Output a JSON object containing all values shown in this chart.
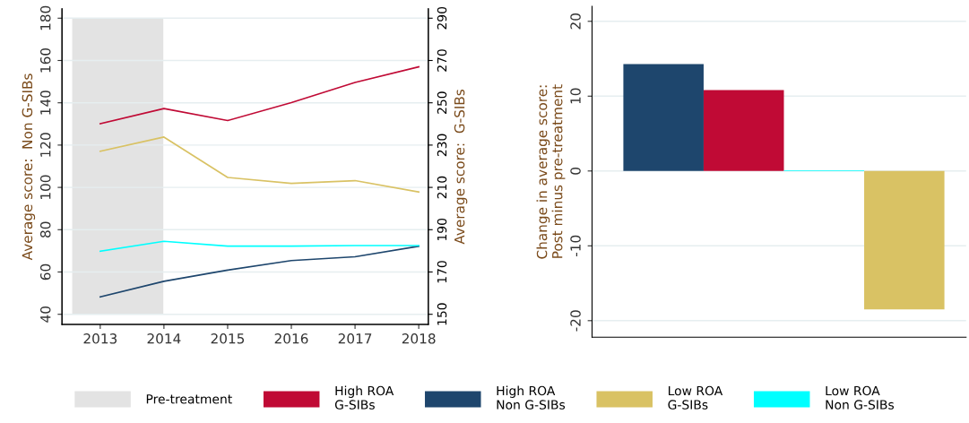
{
  "chart_data": [
    {
      "type": "line",
      "ylabel": "Average score:  Non G-SIBs",
      "y2label": "Average score:  G-SIBs",
      "x": [
        2013,
        2014,
        2015,
        2016,
        2017,
        2018
      ],
      "xlim": [
        2012.4,
        2018.15
      ],
      "xticks": [
        2013,
        2014,
        2015,
        2016,
        2017,
        2018
      ],
      "ylim": [
        35.2,
        184.4
      ],
      "yticks": [
        40,
        60,
        80,
        100,
        120,
        140,
        160,
        180
      ],
      "y2lim": [
        145.2,
        294.4
      ],
      "y2ticks": [
        150,
        170,
        190,
        210,
        230,
        250,
        270,
        290
      ],
      "grid": "y",
      "legend": "bottom",
      "line_style": "solid",
      "marker": "none",
      "bands": [
        {
          "axis": "x",
          "from": 2012.56,
          "to": 2013.99,
          "label": "Pre-treatment",
          "color": "#e3e3e3"
        }
      ],
      "series": [
        {
          "name": "High ROA\nG-SIBs",
          "color": "#c00a35",
          "axis": "y2",
          "values": [
            240.1,
            247.3,
            241.6,
            250.1,
            259.6,
            267.0
          ]
        },
        {
          "name": "High ROA\nNon G-SIBs",
          "color": "#1e466d",
          "values": [
            48.2,
            55.6,
            60.9,
            65.4,
            67.2,
            72.2
          ]
        },
        {
          "name": "Low ROA\nG-SIBs",
          "color": "#d9c264",
          "axis": "y2",
          "values": [
            227.1,
            233.8,
            214.7,
            211.9,
            213.2,
            207.8
          ]
        },
        {
          "name": "Low ROA\nNon G-SIBs",
          "color": "#00ffff",
          "values": [
            69.8,
            74.5,
            72.2,
            72.2,
            72.5,
            72.5
          ]
        }
      ]
    },
    {
      "type": "bar",
      "ylabel": "Change in average score:\nPost minus pre-treatment",
      "categories": [
        null,
        null,
        null,
        null
      ],
      "values": [
        14.3,
        10.8,
        0.1,
        -18.5
      ],
      "colors": [
        "#1e466d",
        "#c00a35",
        "#00ffff",
        "#d9c264"
      ],
      "ylim": [
        -22.2,
        22.0
      ],
      "yticks": [
        -20,
        -10,
        0,
        10,
        20
      ],
      "grid": "y"
    }
  ]
}
